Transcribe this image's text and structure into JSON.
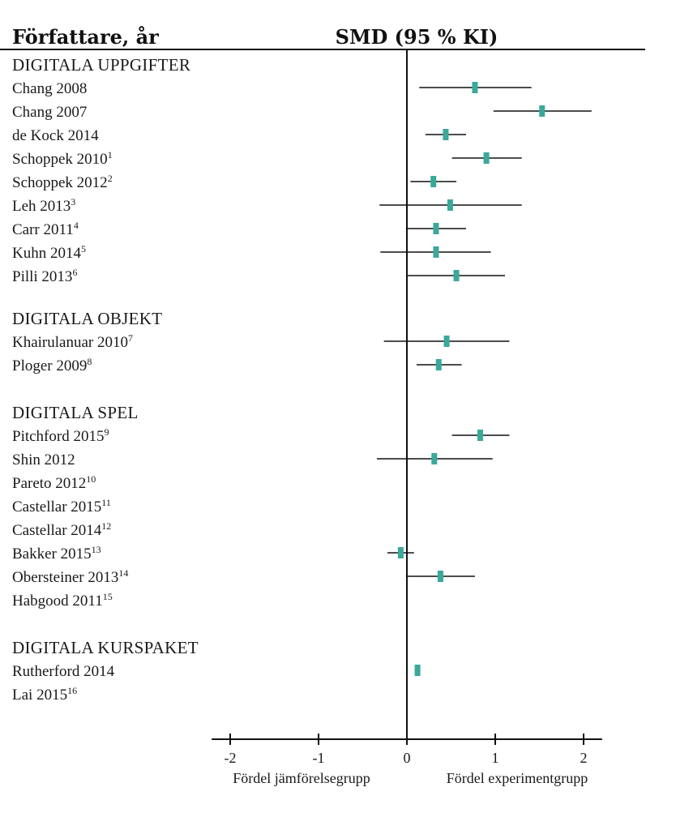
{
  "chart_data": {
    "type": "forest",
    "columns": {
      "author": "Författare, år",
      "effect": "SMD (95 % KI)"
    },
    "groups": [
      {
        "name": "DIGITALA UPPGIFTER",
        "studies": [
          {
            "label": "Chang 2008",
            "ref": "",
            "smd": 0.77,
            "lo": 0.14,
            "hi": 1.41
          },
          {
            "label": "Chang 2007",
            "ref": "",
            "smd": 1.53,
            "lo": 0.98,
            "hi": 2.09
          },
          {
            "label": "de Kock 2014",
            "ref": "",
            "smd": 0.44,
            "lo": 0.21,
            "hi": 0.67
          },
          {
            "label": "Schoppek 2010",
            "ref": "1",
            "smd": 0.9,
            "lo": 0.51,
            "hi": 1.3
          },
          {
            "label": "Schoppek 2012",
            "ref": "2",
            "smd": 0.3,
            "lo": 0.04,
            "hi": 0.56
          },
          {
            "label": "Leh 2013",
            "ref": "3",
            "smd": 0.49,
            "lo": -0.31,
            "hi": 1.3
          },
          {
            "label": "Carr 2011",
            "ref": "4",
            "smd": 0.33,
            "lo": -0.01,
            "hi": 0.67
          },
          {
            "label": "Kuhn 2014",
            "ref": "5",
            "smd": 0.33,
            "lo": -0.3,
            "hi": 0.95
          },
          {
            "label": "Pilli 2013",
            "ref": "6",
            "smd": 0.56,
            "lo": 0.01,
            "hi": 1.11
          }
        ]
      },
      {
        "name": "DIGITALA OBJEKT",
        "studies": [
          {
            "label": "Khairulanuar 2010",
            "ref": "7",
            "smd": 0.45,
            "lo": -0.26,
            "hi": 1.16
          },
          {
            "label": "Ploger 2009",
            "ref": "8",
            "smd": 0.36,
            "lo": 0.11,
            "hi": 0.62
          }
        ]
      },
      {
        "name": "DIGITALA SPEL",
        "studies": [
          {
            "label": "Pitchford 2015",
            "ref": "9",
            "smd": 0.83,
            "lo": 0.51,
            "hi": 1.16
          },
          {
            "label": "Shin 2012",
            "ref": "",
            "smd": 0.31,
            "lo": -0.34,
            "hi": 0.97
          },
          {
            "label": "Pareto 2012",
            "ref": "10",
            "smd": null,
            "lo": null,
            "hi": null
          },
          {
            "label": "Castellar 2015",
            "ref": "11",
            "smd": null,
            "lo": null,
            "hi": null
          },
          {
            "label": "Castellar 2014",
            "ref": "12",
            "smd": null,
            "lo": null,
            "hi": null
          },
          {
            "label": "Bakker 2015",
            "ref": "13",
            "smd": -0.07,
            "lo": -0.22,
            "hi": 0.08
          },
          {
            "label": "Obersteiner 2013",
            "ref": "14",
            "smd": 0.38,
            "lo": -0.01,
            "hi": 0.77
          },
          {
            "label": "Habgood 2011",
            "ref": "15",
            "smd": null,
            "lo": null,
            "hi": null
          }
        ]
      },
      {
        "name": "DIGITALA KURSPAKET",
        "studies": [
          {
            "label": "Rutherford 2014",
            "ref": "",
            "smd": 0.12,
            "lo": 0.09,
            "hi": 0.15
          },
          {
            "label": "Lai 2015",
            "ref": "16",
            "smd": null,
            "lo": null,
            "hi": null
          }
        ]
      }
    ],
    "x_ticks": [
      -2,
      -1,
      0,
      1,
      2
    ],
    "xlim": [
      -2.2,
      2.2
    ],
    "x_notes": {
      "left": "Fördel jämförelsegrupp",
      "right": "Fördel experimentgrupp"
    },
    "marker_color": "#3aa89a"
  }
}
